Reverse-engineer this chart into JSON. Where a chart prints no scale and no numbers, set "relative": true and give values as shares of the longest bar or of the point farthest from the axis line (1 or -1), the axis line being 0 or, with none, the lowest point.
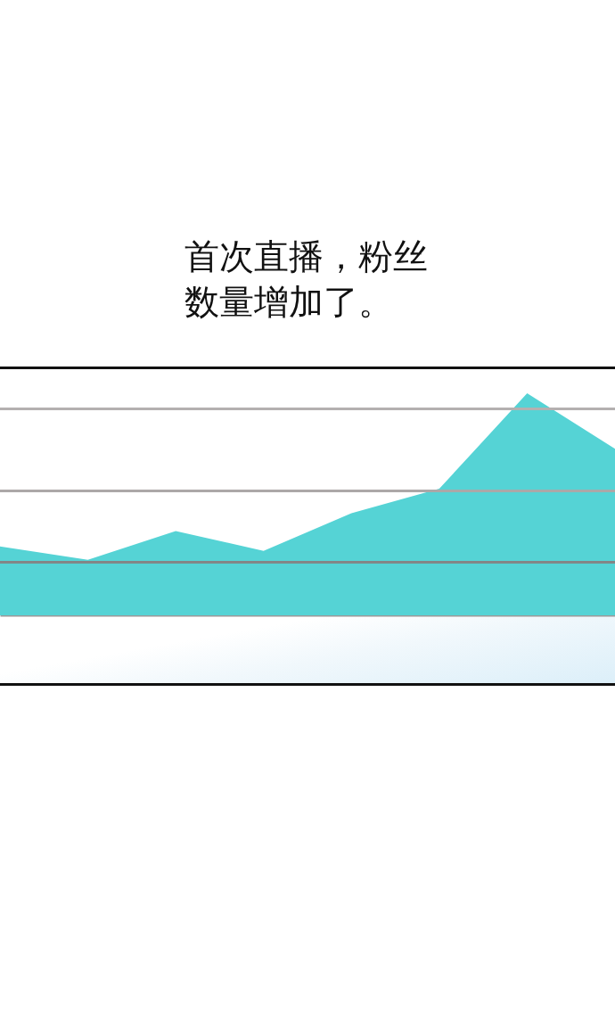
{
  "chart_data": {
    "type": "area",
    "title": "首次直播，粉丝数量增加了。",
    "categories": [
      null,
      null,
      null,
      null,
      null,
      null,
      null,
      null
    ],
    "values": [
      0.31,
      0.25,
      0.38,
      0.29,
      0.46,
      0.57,
      1,
      0.75
    ],
    "color": "#55d3d5",
    "relative": true,
    "ref_lines": [
      {
        "axis": "y",
        "value": 0.24,
        "color": "#858585"
      },
      {
        "axis": "y",
        "value": 0.56,
        "color": "#aca8a8"
      },
      {
        "axis": "y",
        "value": 0.93,
        "color": "#b4b0b0"
      }
    ]
  }
}
